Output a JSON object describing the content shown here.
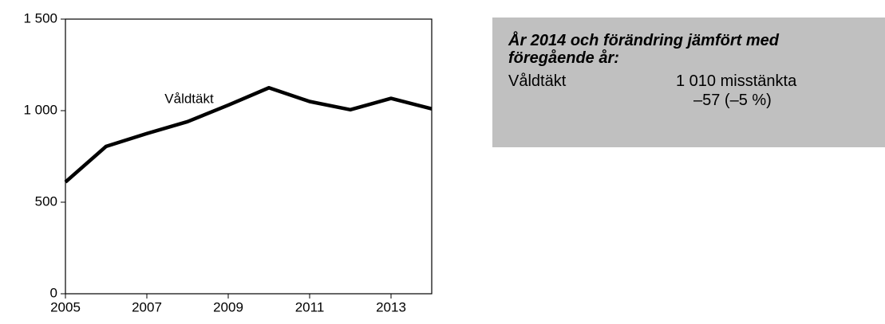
{
  "chart_data": {
    "type": "line",
    "x": [
      2005,
      2006,
      2007,
      2008,
      2009,
      2010,
      2011,
      2012,
      2013,
      2014
    ],
    "series": [
      {
        "name": "Våldtäkt",
        "color": "#000000",
        "values": [
          610,
          805,
          875,
          940,
          1030,
          1125,
          1050,
          1005,
          1067,
          1010
        ]
      }
    ],
    "xlim": [
      2005,
      2014
    ],
    "xticks": [
      2005,
      2007,
      2009,
      2011,
      2013
    ],
    "ylim": [
      0,
      1500
    ],
    "yticks": [
      0,
      500,
      {
        "value": 1000,
        "label": "1 000"
      },
      {
        "value": 1500,
        "label": "1 500"
      }
    ]
  },
  "info_box": {
    "title": "År 2014 och förändring jämfört med föregående år:",
    "rows": [
      {
        "label": "Våldtäkt",
        "value": "1 010 misstänkta",
        "change": "–57 (–5 %)"
      }
    ]
  }
}
